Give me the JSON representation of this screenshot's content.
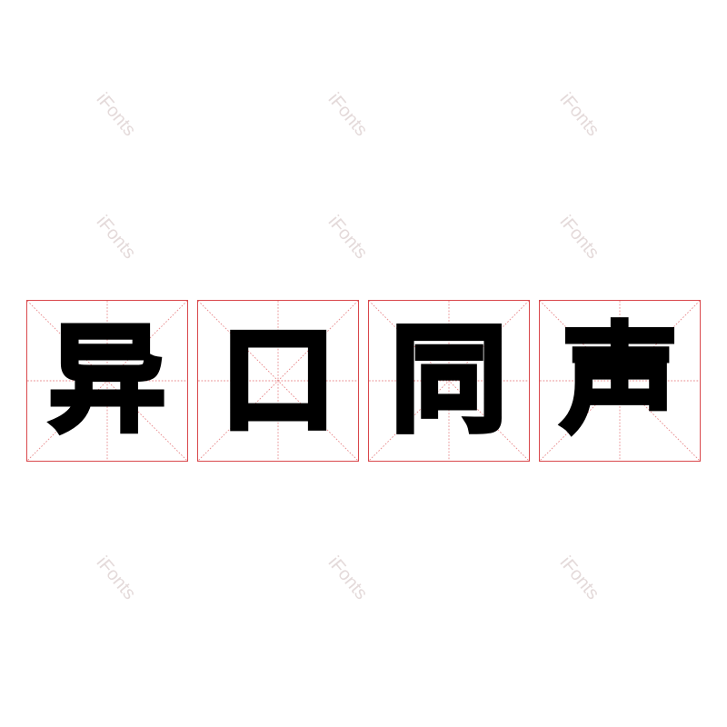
{
  "characters": [
    "异",
    "口",
    "同",
    "声"
  ],
  "watermark": "iFonts",
  "colors": {
    "grid_border": "#d9484c",
    "grid_guides": "#e88a8c",
    "glyph": "#000000",
    "watermark": "#e4dada"
  }
}
